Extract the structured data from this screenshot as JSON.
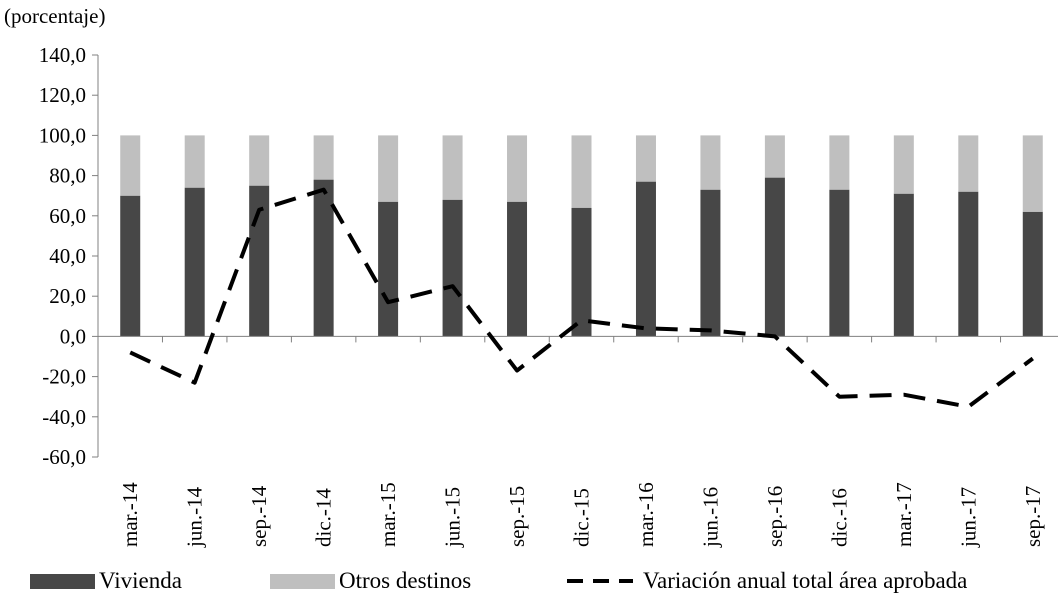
{
  "chart_data": {
    "type": "bar",
    "stacked": true,
    "unit_label": "(porcentaje)",
    "categories": [
      "mar.-14",
      "jun.-14",
      "sep.-14",
      "dic.-14",
      "mar.-15",
      "jun.-15",
      "sep.-15",
      "dic.-15",
      "mar.-16",
      "jun.-16",
      "sep.-16",
      "dic.-16",
      "mar.-17",
      "jun.-17",
      "sep.-17"
    ],
    "ylim": [
      -60,
      140
    ],
    "yticks": [
      140,
      120,
      100,
      80,
      60,
      40,
      20,
      0,
      -20,
      -40,
      -60
    ],
    "ytick_labels": [
      "140,0",
      "120,0",
      "100,0",
      "80,0",
      "60,0",
      "40,0",
      "20,0",
      "0,0",
      "-20,0",
      "-40,0",
      "-60,0"
    ],
    "grid": false,
    "legend_position": "bottom",
    "series": [
      {
        "name": "Vivienda",
        "kind": "bar",
        "color": "#474747",
        "values": [
          70,
          74,
          75,
          78,
          67,
          68,
          67,
          64,
          77,
          73,
          79,
          73,
          71,
          72,
          62
        ]
      },
      {
        "name": "Otros destinos",
        "kind": "bar",
        "color": "#bfbfbf",
        "values": [
          30,
          26,
          25,
          22,
          33,
          32,
          33,
          36,
          23,
          27,
          21,
          27,
          29,
          28,
          38
        ]
      },
      {
        "name": "Variación anual total área aprobada",
        "kind": "line",
        "style": "dashed",
        "color": "#000000",
        "values": [
          -8,
          -23,
          63,
          73,
          17,
          25,
          -17,
          8,
          4,
          3,
          0,
          -30,
          -29,
          -35,
          -11
        ]
      }
    ]
  }
}
